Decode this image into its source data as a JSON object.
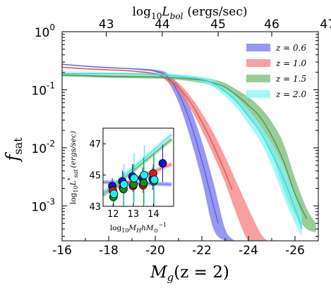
{
  "chart_data": {
    "type": "area",
    "main": {
      "x_label": "M_g(z = 2)",
      "y_label": "f_sat",
      "x_label_main": "M",
      "x_label_sub": "g",
      "x_label_rest": "(z = 2)",
      "y_label_main": "f",
      "y_label_sub": "sat",
      "x_range": [
        -16,
        -27
      ],
      "y_range": [
        0.00025,
        1.0
      ],
      "y_scale": "log",
      "x_ticks": [
        "-16",
        "-18",
        "-20",
        "-22",
        "-24",
        "-26"
      ],
      "x_tick_values": [
        -16,
        -18,
        -20,
        -22,
        -24,
        -26
      ],
      "y_ticks": [
        "10",
        "10",
        "10",
        "10"
      ],
      "y_tick_exponents": [
        "0",
        "-1",
        "-2",
        "-3"
      ],
      "y_tick_values": [
        1.0,
        0.1,
        0.01,
        0.001
      ],
      "top_axis_label_prefix": "log",
      "top_axis_label_sub": "10",
      "top_axis_label_var": "L",
      "top_axis_label_varsub": "bol",
      "top_axis_label_units": "(ergs/sec)",
      "top_ticks": [
        "43",
        "44",
        "45",
        "46",
        "47"
      ],
      "top_tick_x_at_mg": [
        -17.9,
        -20.3,
        -22.7,
        -25.0,
        -27.4
      ],
      "legend_position": "top-right"
    },
    "series": [
      {
        "name": "z = 0.6",
        "label": "z = 0.6",
        "color": "#6f6ff0",
        "line_color": "#5a5ae0",
        "band": {
          "x": [
            -16,
            -17,
            -18,
            -19,
            -19.5,
            -20,
            -20.5,
            -21,
            -21.5,
            -22,
            -22.5,
            -23,
            -23.4
          ],
          "upper": [
            0.28,
            0.26,
            0.245,
            0.235,
            0.23,
            0.22,
            0.195,
            0.12,
            0.048,
            0.013,
            0.0025,
            0.0004,
            0.00025
          ],
          "lower": [
            0.27,
            0.25,
            0.235,
            0.225,
            0.215,
            0.2,
            0.145,
            0.06,
            0.015,
            0.0028,
            0.0004,
            0.00025,
            0.00025
          ]
        },
        "line": {
          "x": [
            -16,
            -17,
            -18,
            -19,
            -19.5,
            -20,
            -20.5,
            -21,
            -21.5,
            -22,
            -22.5,
            -22.7
          ],
          "y": [
            0.275,
            0.255,
            0.24,
            0.23,
            0.222,
            0.21,
            0.17,
            0.088,
            0.028,
            0.006,
            0.001,
            0.0005
          ]
        }
      },
      {
        "name": "z = 1.0",
        "label": "z = 1.0",
        "color": "#f57a7a",
        "line_color": "#e05050",
        "band": {
          "x": [
            -16,
            -17,
            -18,
            -19,
            -20,
            -20.5,
            -21,
            -21.5,
            -22,
            -22.5,
            -23,
            -23.5,
            -24,
            -24.5,
            -24.8
          ],
          "upper": [
            0.25,
            0.235,
            0.225,
            0.215,
            0.195,
            0.17,
            0.13,
            0.078,
            0.04,
            0.018,
            0.007,
            0.0025,
            0.0009,
            0.00035,
            0.00025
          ],
          "lower": [
            0.24,
            0.225,
            0.215,
            0.205,
            0.18,
            0.14,
            0.09,
            0.048,
            0.02,
            0.0075,
            0.0025,
            0.0007,
            0.00025,
            0.00025,
            0.00025
          ]
        },
        "line": {
          "x": [
            -16,
            -17,
            -18,
            -19,
            -20,
            -20.5,
            -21,
            -21.5,
            -22,
            -22.5,
            -23,
            -23.3
          ],
          "y": [
            0.245,
            0.23,
            0.22,
            0.21,
            0.188,
            0.155,
            0.11,
            0.062,
            0.028,
            0.011,
            0.0038,
            0.0019
          ]
        }
      },
      {
        "name": "z = 1.5",
        "label": "z = 1.5",
        "color": "#72b872",
        "line_color": "#4a944a",
        "band": {
          "x": [
            -16,
            -17,
            -18,
            -19,
            -20,
            -21,
            -22,
            -22.5,
            -23,
            -23.5,
            -24,
            -24.5,
            -25,
            -25.5,
            -26,
            -26.5,
            -26.9
          ],
          "upper": [
            0.19,
            0.185,
            0.18,
            0.178,
            0.176,
            0.172,
            0.162,
            0.15,
            0.13,
            0.1,
            0.075,
            0.05,
            0.028,
            0.012,
            0.003,
            0.0009,
            0.0005
          ],
          "lower": [
            0.17,
            0.165,
            0.16,
            0.158,
            0.155,
            0.148,
            0.13,
            0.115,
            0.09,
            0.06,
            0.035,
            0.02,
            0.008,
            0.002,
            0.0007,
            0.0004,
            0.00035
          ]
        },
        "line": {
          "x": [
            -16,
            -17,
            -18,
            -19,
            -20,
            -21,
            -22,
            -22.5,
            -23,
            -23.5,
            -24,
            -24.5,
            -25,
            -25.5,
            -26,
            -26.5
          ],
          "y": [
            0.18,
            0.175,
            0.17,
            0.168,
            0.166,
            0.16,
            0.146,
            0.132,
            0.11,
            0.08,
            0.054,
            0.034,
            0.016,
            0.006,
            0.0016,
            0.0006
          ]
        }
      },
      {
        "name": "z = 2.0",
        "label": "z = 2.0",
        "color": "#7ff5f5",
        "line_color": "#30d8d8",
        "band": {
          "x": [
            -16,
            -17,
            -18,
            -19,
            -20,
            -21,
            -22,
            -22.5,
            -23,
            -23.5,
            -24,
            -24.5,
            -25,
            -25.5,
            -26,
            -26.3
          ],
          "upper": [
            0.2,
            0.2,
            0.2,
            0.198,
            0.195,
            0.185,
            0.165,
            0.145,
            0.11,
            0.075,
            0.045,
            0.025,
            0.012,
            0.005,
            0.0015,
            0.0007
          ],
          "lower": [
            0.18,
            0.18,
            0.18,
            0.178,
            0.172,
            0.16,
            0.135,
            0.11,
            0.078,
            0.048,
            0.026,
            0.013,
            0.005,
            0.0015,
            0.0005,
            0.0003
          ]
        },
        "line": {
          "x": [
            -16,
            -17,
            -18,
            -19,
            -20,
            -21,
            -22,
            -22.5,
            -23,
            -23.5,
            -24,
            -24.5,
            -25,
            -25.5,
            -26,
            -26.3
          ],
          "y": [
            0.19,
            0.19,
            0.19,
            0.188,
            0.183,
            0.172,
            0.15,
            0.128,
            0.094,
            0.062,
            0.035,
            0.019,
            0.008,
            0.003,
            0.0009,
            0.0004
          ]
        }
      }
    ],
    "inset": {
      "x_label": "log10 M_H h M_sun^-1",
      "y_label": "log10 L*_sat (ergs/sec)",
      "x_label_prefix": "log",
      "x_label_sub": "10",
      "x_label_var": "M",
      "x_label_varsub": "H",
      "x_label_rest": "hM",
      "x_label_sun": "⊙",
      "x_label_exp": "−1",
      "y_label_prefix": "log",
      "y_label_sub": "10",
      "y_label_var": "L",
      "y_label_star": "*",
      "y_label_varsub": "sat",
      "y_label_units": "(ergs/sec)",
      "x_range": [
        11.5,
        15.0
      ],
      "y_range": [
        43.0,
        48.0
      ],
      "x_ticks": [
        "12",
        "13",
        "14"
      ],
      "x_tick_values": [
        12,
        13,
        14
      ],
      "y_ticks": [
        "43",
        "45",
        "47"
      ],
      "y_tick_values": [
        43,
        45,
        47
      ],
      "lines": [
        {
          "name": "z = 0.6",
          "x": [
            11.5,
            14.9
          ],
          "y": [
            44.55,
            44.4
          ]
        },
        {
          "name": "z = 1.0",
          "x": [
            11.5,
            14.9
          ],
          "y": [
            43.9,
            45.7
          ]
        },
        {
          "name": "z = 1.5",
          "x": [
            11.5,
            14.9
          ],
          "y": [
            43.7,
            47.3
          ]
        },
        {
          "name": "z = 2.0",
          "x": [
            11.5,
            14.9
          ],
          "y": [
            43.8,
            47.6
          ]
        }
      ],
      "points": [
        {
          "name": "z = 0.6",
          "x": [
            12.0,
            12.5,
            13.0,
            13.5,
            14.0,
            14.5
          ],
          "y": [
            44.3,
            44.6,
            44.9,
            44.8,
            44.75,
            45.75
          ],
          "err": [
            0.5,
            0.7,
            0.8,
            0.7,
            0.7,
            1.2
          ]
        },
        {
          "name": "z = 1.0",
          "x": [
            12.0,
            12.5,
            13.0,
            13.5,
            14.0
          ],
          "y": [
            44.0,
            44.2,
            44.3,
            44.35,
            45.1
          ],
          "err": [
            0.3,
            0.3,
            0.4,
            0.5,
            0.6
          ]
        },
        {
          "name": "z = 1.5",
          "x": [
            12.0,
            12.5,
            13.0,
            13.5,
            14.0
          ],
          "y": [
            43.6,
            44.1,
            44.4,
            44.5,
            44.6
          ],
          "err": [
            0.8,
            1.1,
            1.3,
            1.6,
            1.8
          ]
        },
        {
          "name": "z = 2.0",
          "x": [
            12.0,
            12.5,
            13.0,
            13.5,
            14.0
          ],
          "y": [
            43.8,
            44.4,
            44.8,
            45.0,
            44.7
          ],
          "err": [
            0.9,
            1.3,
            1.6,
            1.9,
            2.0
          ]
        }
      ]
    }
  }
}
